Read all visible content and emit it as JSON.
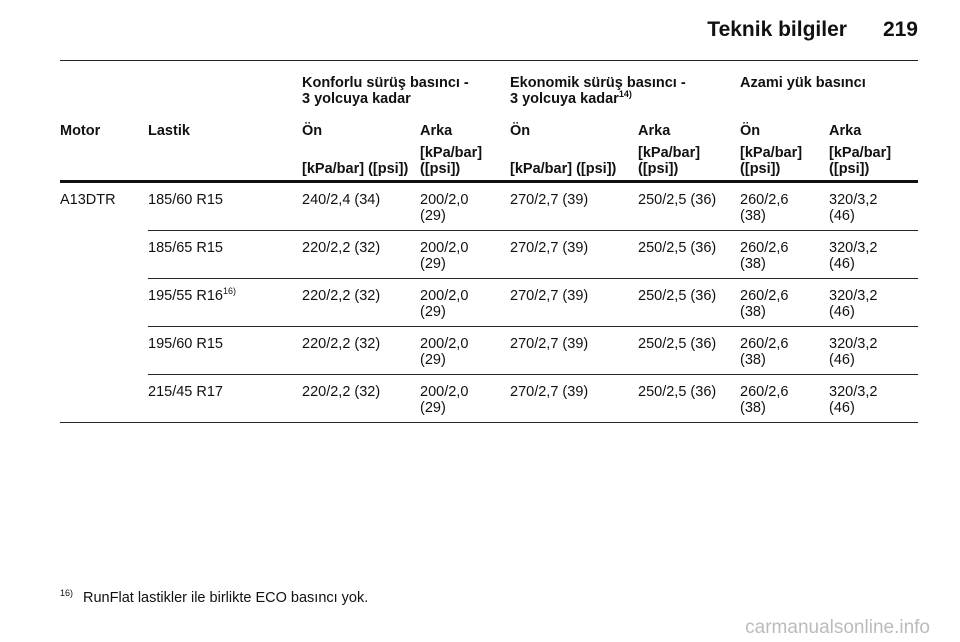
{
  "header": {
    "title": "Teknik bilgiler",
    "page": "219"
  },
  "table": {
    "groups": [
      {
        "lines": [
          "Konforlu sürüş basıncı -",
          "3 yolcuya kadar"
        ]
      },
      {
        "lines": [
          "Ekonomik sürüş basıncı -",
          "3 yolcuya kadar"
        ],
        "note": "14)"
      },
      {
        "lines": [
          "Azami yük basıncı"
        ]
      }
    ],
    "columns": [
      "Motor",
      "Lastik",
      "Ön",
      "Arka",
      "Ön",
      "Arka",
      "Ön",
      "Arka"
    ],
    "units": [
      "[kPa/bar] ([psi])",
      "[kPa/bar] ([psi])",
      "[kPa/bar] ([psi])",
      "[kPa/bar] ([psi])",
      "[kPa/bar] ([psi])",
      "[kPa/bar] ([psi])"
    ],
    "motor": "A13DTR",
    "rows": [
      {
        "tire": "185/60 R15",
        "values": [
          "240/2,4 (34)",
          "200/2,0 (29)",
          "270/2,7 (39)",
          "250/2,5 (36)",
          "260/2,6 (38)",
          "320/3,2 (46)"
        ]
      },
      {
        "tire": "185/65 R15",
        "values": [
          "220/2,2 (32)",
          "200/2,0 (29)",
          "270/2,7 (39)",
          "250/2,5 (36)",
          "260/2,6 (38)",
          "320/3,2 (46)"
        ]
      },
      {
        "tire": "195/55 R16",
        "note": "16)",
        "values": [
          "220/2,2 (32)",
          "200/2,0 (29)",
          "270/2,7 (39)",
          "250/2,5 (36)",
          "260/2,6 (38)",
          "320/3,2 (46)"
        ]
      },
      {
        "tire": "195/60 R15",
        "values": [
          "220/2,2 (32)",
          "200/2,0 (29)",
          "270/2,7 (39)",
          "250/2,5 (36)",
          "260/2,6 (38)",
          "320/3,2 (46)"
        ]
      },
      {
        "tire": "215/45 R17",
        "values": [
          "220/2,2 (32)",
          "200/2,0 (29)",
          "270/2,7 (39)",
          "250/2,5 (36)",
          "260/2,6 (38)",
          "320/3,2 (46)"
        ]
      }
    ]
  },
  "footnote": {
    "mark": "16)",
    "text": "RunFlat lastikler ile birlikte ECO basıncı yok."
  },
  "watermark": "carmanualsonline.info"
}
